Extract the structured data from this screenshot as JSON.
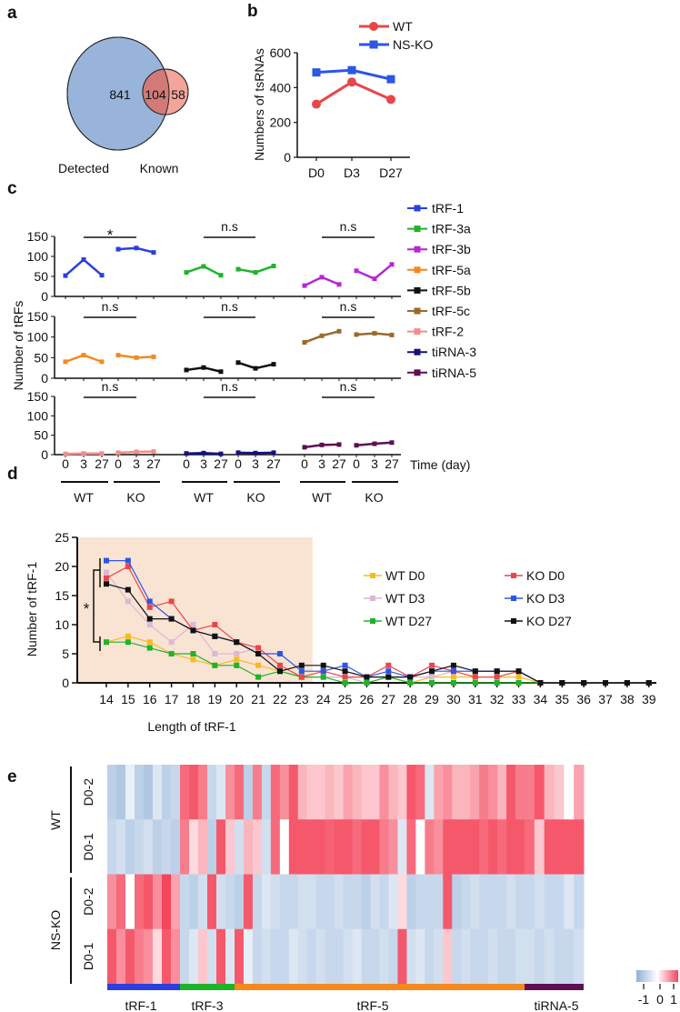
{
  "chart_data": [
    {
      "panel": "a",
      "type": "venn",
      "sets": [
        {
          "name": "Detected",
          "only": 841,
          "color": "#98b4da",
          "label_color": "#4a64a8"
        },
        {
          "name": "Known",
          "only": 58,
          "color": "#f4a59b",
          "label_color": "#e8868a"
        }
      ],
      "intersection": 104,
      "intersection_color": "#d27a78"
    },
    {
      "panel": "b",
      "type": "line",
      "ylabel": "Numbers of tsRNAs",
      "categories": [
        "D0",
        "D3",
        "D27"
      ],
      "ylim": [
        0,
        600
      ],
      "yticks": [
        0,
        200,
        400,
        600
      ],
      "legend": "top-right",
      "series": [
        {
          "name": "WT",
          "values": [
            305,
            432,
            332
          ],
          "color": "#e8474a",
          "marker": "circle"
        },
        {
          "name": "NS-KO",
          "values": [
            487,
            500,
            448
          ],
          "color": "#2d56e6",
          "marker": "square"
        }
      ]
    },
    {
      "panel": "c",
      "type": "line",
      "ylabel": "Number of tRFs",
      "xlabel": "Time (day)",
      "time_ticks": [
        "0",
        "3",
        "27"
      ],
      "groups": [
        "WT",
        "KO"
      ],
      "ylim": [
        0,
        150
      ],
      "yticks": [
        0,
        50,
        100,
        150
      ],
      "legend": "right",
      "subplots": [
        [
          {
            "name": "tRF-1",
            "color": "#2b3fe0",
            "WT": [
              52,
              92,
              53
            ],
            "KO": [
              118,
              121,
              110
            ],
            "sig": "*"
          },
          {
            "name": "tRF-3a",
            "color": "#1fb32a",
            "WT": [
              60,
              75,
              53
            ],
            "KO": [
              68,
              60,
              76
            ],
            "sig": "n.s"
          },
          {
            "name": "tRF-3b",
            "color": "#b427d6",
            "WT": [
              27,
              48,
              30
            ],
            "KO": [
              64,
              44,
              80
            ],
            "sig": "n.s"
          }
        ],
        [
          {
            "name": "tRF-5a",
            "color": "#f5891f",
            "WT": [
              40,
              56,
              40
            ],
            "KO": [
              56,
              50,
              52
            ],
            "sig": "n.s"
          },
          {
            "name": "tRF-5b",
            "color": "#111111",
            "WT": [
              20,
              26,
              16
            ],
            "KO": [
              38,
              24,
              34
            ],
            "sig": "n.s"
          },
          {
            "name": "tRF-5c",
            "color": "#9a6a2a",
            "WT": [
              87,
              103,
              114
            ],
            "KO": [
              106,
              109,
              105
            ],
            "sig": "n.s"
          }
        ],
        [
          {
            "name": "tRF-2",
            "color": "#f38c8c",
            "WT": [
              2,
              3,
              3
            ],
            "KO": [
              5,
              7,
              8
            ],
            "sig": "n.s"
          },
          {
            "name": "tiRNA-3",
            "color": "#14137a",
            "WT": [
              3,
              4,
              2
            ],
            "KO": [
              5,
              4,
              5
            ],
            "sig": "n.s"
          },
          {
            "name": "tiRNA-5",
            "color": "#5e0f52",
            "WT": [
              19,
              25,
              26
            ],
            "KO": [
              24,
              28,
              31
            ],
            "sig": "n.s"
          }
        ]
      ]
    },
    {
      "panel": "d",
      "type": "line",
      "xlabel": "Length of tRF-1",
      "ylabel": "Number of tRF-1",
      "x": [
        14,
        15,
        16,
        17,
        18,
        19,
        20,
        21,
        22,
        23,
        24,
        25,
        26,
        27,
        28,
        29,
        30,
        31,
        32,
        33,
        34,
        35,
        36,
        37,
        38,
        39
      ],
      "ylim": [
        0,
        25
      ],
      "yticks": [
        0,
        5,
        10,
        15,
        20,
        25
      ],
      "shaded_range": [
        13,
        23.5
      ],
      "shade_color": "#f9e3d3",
      "legend": "top-right",
      "annotation": "*",
      "series": [
        {
          "name": "WT D0",
          "color": "#f7bb22",
          "values": [
            7,
            8,
            7,
            5,
            4,
            3,
            4,
            3,
            2,
            1,
            1,
            1,
            1,
            1,
            0,
            1,
            1,
            1,
            1,
            1,
            0,
            0,
            0,
            0,
            0,
            0
          ]
        },
        {
          "name": "WT D3",
          "color": "#dcb8d6",
          "values": [
            19,
            14,
            10,
            7,
            10,
            5,
            5,
            6,
            3,
            1,
            1,
            1,
            0,
            1,
            1,
            1,
            2,
            2,
            2,
            2,
            0,
            0,
            0,
            0,
            0,
            0
          ]
        },
        {
          "name": "WT D27",
          "color": "#1fb32a",
          "values": [
            7,
            7,
            6,
            5,
            5,
            3,
            3,
            1,
            2,
            1,
            1,
            0,
            0,
            1,
            0,
            0,
            0,
            0,
            0,
            0,
            0,
            0,
            0,
            0,
            0,
            0
          ]
        },
        {
          "name": "KO D0",
          "color": "#e8474a",
          "values": [
            18,
            20,
            13,
            14,
            9,
            10,
            7,
            6,
            3,
            1,
            2,
            1,
            1,
            3,
            1,
            3,
            2,
            1,
            1,
            2,
            0,
            0,
            0,
            0,
            0,
            0
          ]
        },
        {
          "name": "KO D3",
          "color": "#2d56e6",
          "values": [
            21,
            21,
            14,
            11,
            9,
            8,
            7,
            5,
            5,
            2,
            2,
            3,
            1,
            2,
            1,
            2,
            2,
            2,
            2,
            2,
            0,
            0,
            0,
            0,
            0,
            0
          ]
        },
        {
          "name": "KO D27",
          "color": "#111111",
          "values": [
            17,
            16,
            11,
            11,
            9,
            8,
            7,
            5,
            2,
            3,
            3,
            2,
            1,
            1,
            1,
            2,
            3,
            2,
            2,
            2,
            0,
            0,
            0,
            0,
            0,
            0
          ]
        }
      ]
    },
    {
      "panel": "e",
      "type": "heatmap",
      "conditions": [
        "WT",
        "NS-KO"
      ],
      "rows": [
        "D0-2",
        "D0-1",
        "D0-2",
        "D0-1"
      ],
      "color_scale": {
        "min": -1,
        "max": 1,
        "ticks": [
          "-1",
          "0",
          "1"
        ],
        "low": "#8fb0d8",
        "mid": "#ffffff",
        "high": "#f5455b"
      },
      "groups": [
        {
          "name": "tRF-1",
          "color": "#2b3fe0",
          "values": [
            [
              -0.6,
              -0.7,
              -0.2,
              -0.6,
              -0.7,
              -0.3,
              -0.6,
              -0.5
            ],
            [
              -0.5,
              -0.4,
              -0.6,
              -0.5,
              -0.4,
              -0.6,
              -0.5,
              -0.6
            ],
            [
              0.6,
              0.8,
              0.0,
              0.8,
              0.9,
              0.6,
              1.0,
              0.5
            ],
            [
              0.9,
              0.6,
              0.9,
              0.7,
              0.6,
              0.2,
              0.9,
              0.6
            ]
          ]
        },
        {
          "name": "tRF-3",
          "color": "#1fb32a",
          "values": [
            [
              0.8,
              0.9,
              0.7,
              -0.5,
              -0.3,
              0.6
            ],
            [
              0.7,
              0.2,
              0.4,
              -0.6,
              0.9,
              0.3
            ],
            [
              -0.5,
              -0.6,
              -0.4,
              0.9,
              -0.4,
              -0.5
            ],
            [
              -0.5,
              -0.3,
              0.3,
              -0.4,
              0.9,
              -0.3
            ]
          ]
        },
        {
          "name": "tRF-5",
          "color": "#f5891f",
          "values": [
            [
              0.8,
              -0.6,
              0.7,
              -0.5,
              0.8,
              0.6,
              0.9,
              0.4,
              0.3,
              0.3,
              0.4,
              0.3,
              0.5,
              0.4,
              0.3,
              0.3,
              0.6,
              0.4,
              0.3,
              0.9,
              0.8,
              -0.3,
              0.5,
              0.6,
              0.4,
              0.4,
              0.5,
              0.7,
              0.6,
              0.4,
              0.9,
              0.7
            ],
            [
              -0.4,
              0.4,
              0.3,
              -0.4,
              0.8,
              0.0,
              0.9,
              0.9,
              0.9,
              0.9,
              0.85,
              0.9,
              0.9,
              0.8,
              0.9,
              0.9,
              0.7,
              0.6,
              -0.3,
              0.8,
              0.0,
              0.7,
              0.6,
              0.9,
              0.9,
              0.9,
              0.9,
              0.8,
              0.9,
              0.8,
              0.9,
              0.9
            ],
            [
              -0.6,
              0.9,
              -0.5,
              -0.3,
              -0.4,
              -0.5,
              -0.5,
              -0.4,
              -0.4,
              -0.5,
              -0.5,
              -0.4,
              -0.5,
              -0.5,
              -0.6,
              -0.4,
              -0.5,
              -0.3,
              0.2,
              -0.6,
              -0.5,
              -0.5,
              -0.5,
              0.9,
              -0.6,
              -0.5,
              -0.4,
              -0.5,
              -0.5,
              -0.5,
              -0.4,
              -0.5
            ],
            [
              0.9,
              -0.2,
              -0.5,
              -0.4,
              -0.5,
              -0.5,
              -0.3,
              -0.4,
              -0.5,
              -0.4,
              -0.5,
              -0.5,
              -0.4,
              -0.3,
              -0.5,
              -0.5,
              -0.4,
              -0.5,
              0.9,
              -0.4,
              -0.3,
              -0.5,
              -0.4,
              0.3,
              -0.5,
              -0.4,
              -0.5,
              -0.5,
              -0.4,
              -0.5,
              -0.5,
              -0.4
            ]
          ]
        },
        {
          "name": "tiRNA-5",
          "color": "#5e0f52",
          "values": [
            [
              0.7,
              0.9,
              0.4,
              0.3,
              0.0,
              0.5
            ],
            [
              0.8,
              0.3,
              0.9,
              0.9,
              0.9,
              0.9
            ],
            [
              -0.5,
              -0.4,
              -0.5,
              -0.5,
              -0.3,
              -0.5
            ],
            [
              -0.4,
              -0.5,
              -0.4,
              -0.5,
              -0.5,
              -0.4
            ]
          ]
        }
      ]
    }
  ],
  "panel_labels": [
    "a",
    "b",
    "c",
    "d",
    "e"
  ]
}
